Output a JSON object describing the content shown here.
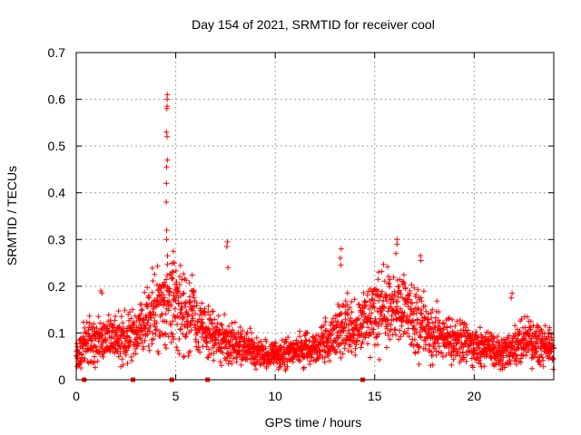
{
  "chart_data": {
    "type": "scatter",
    "title": "Day 154 of 2021, SRMTID for receiver cool",
    "xlabel": "GPS time / hours",
    "ylabel": "SRMTID / TECUs",
    "xlim": [
      0,
      24
    ],
    "ylim": [
      0,
      0.7
    ],
    "xticks": [
      0,
      5,
      10,
      15,
      20
    ],
    "xtick_labels": [
      "0",
      "5",
      "10",
      "15",
      "20"
    ],
    "yticks": [
      0,
      0.1,
      0.2,
      0.3,
      0.4,
      0.5,
      0.6,
      0.7
    ],
    "ytick_labels": [
      "0",
      "0.1",
      "0.2",
      "0.3",
      "0.4",
      "0.5",
      "0.6",
      "0.7"
    ],
    "grid": true,
    "marker": "+",
    "color": "#ff0000",
    "profile_hours": [
      0,
      0.3,
      0.6,
      1.0,
      1.5,
      2.0,
      2.5,
      3.0,
      3.5,
      4.0,
      4.5,
      5.0,
      5.5,
      6.0,
      6.5,
      7.0,
      7.5,
      8.0,
      8.5,
      9.0,
      9.5,
      10.0,
      10.5,
      11.0,
      11.5,
      12.0,
      12.5,
      13.0,
      13.5,
      14.0,
      14.5,
      15.0,
      15.5,
      16.0,
      16.5,
      17.0,
      17.5,
      18.0,
      18.5,
      19.0,
      19.5,
      20.0,
      20.5,
      21.0,
      21.5,
      22.0,
      22.5,
      23.0,
      23.5,
      24.0
    ],
    "profile_values": [
      0.06,
      0.07,
      0.08,
      0.08,
      0.08,
      0.09,
      0.09,
      0.1,
      0.13,
      0.14,
      0.16,
      0.17,
      0.15,
      0.12,
      0.1,
      0.09,
      0.08,
      0.08,
      0.07,
      0.06,
      0.055,
      0.05,
      0.055,
      0.06,
      0.065,
      0.07,
      0.08,
      0.09,
      0.12,
      0.11,
      0.12,
      0.14,
      0.15,
      0.16,
      0.15,
      0.13,
      0.11,
      0.1,
      0.09,
      0.09,
      0.08,
      0.07,
      0.07,
      0.06,
      0.055,
      0.07,
      0.09,
      0.08,
      0.07,
      0.06
    ],
    "peaks": [
      {
        "hour": 4.55,
        "values": [
          0.61,
          0.6,
          0.585,
          0.58,
          0.53,
          0.52,
          0.47,
          0.455,
          0.42,
          0.38,
          0.32,
          0.3,
          0.265
        ]
      },
      {
        "hour": 4.85,
        "values": [
          0.275,
          0.25,
          0.23
        ]
      },
      {
        "hour": 7.6,
        "values": [
          0.295,
          0.285,
          0.24
        ]
      },
      {
        "hour": 13.3,
        "values": [
          0.28,
          0.26,
          0.245
        ]
      },
      {
        "hour": 16.1,
        "values": [
          0.3,
          0.29,
          0.27
        ]
      },
      {
        "hour": 17.3,
        "values": [
          0.265,
          0.255
        ]
      },
      {
        "hour": 21.9,
        "values": [
          0.185,
          0.175
        ]
      },
      {
        "hour": 1.25,
        "values": [
          0.19,
          0.185
        ]
      }
    ],
    "zero_markers_hours": [
      0.4,
      2.85,
      4.8,
      6.6,
      14.4
    ]
  }
}
